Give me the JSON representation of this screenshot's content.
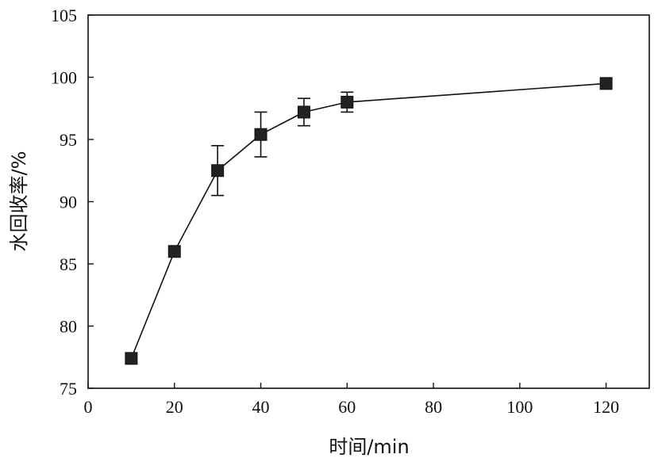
{
  "chart_data": {
    "type": "line",
    "title": "",
    "xlabel": "时间/min",
    "ylabel": "水回收率/%",
    "xlim": [
      0,
      130
    ],
    "ylim": [
      75,
      105
    ],
    "x_ticks": [
      0,
      20,
      40,
      60,
      80,
      100,
      120
    ],
    "y_ticks": [
      75,
      80,
      85,
      90,
      95,
      100,
      105
    ],
    "grid": false,
    "legend": "none",
    "series": [
      {
        "x": [
          10,
          20,
          30,
          40,
          50,
          60,
          120
        ],
        "values": [
          77.4,
          86.0,
          92.5,
          95.4,
          97.2,
          98.0,
          99.5
        ],
        "error": [
          0,
          0,
          2.0,
          1.8,
          1.1,
          0.8,
          0
        ],
        "marker": "square",
        "color": "#222222"
      }
    ]
  }
}
